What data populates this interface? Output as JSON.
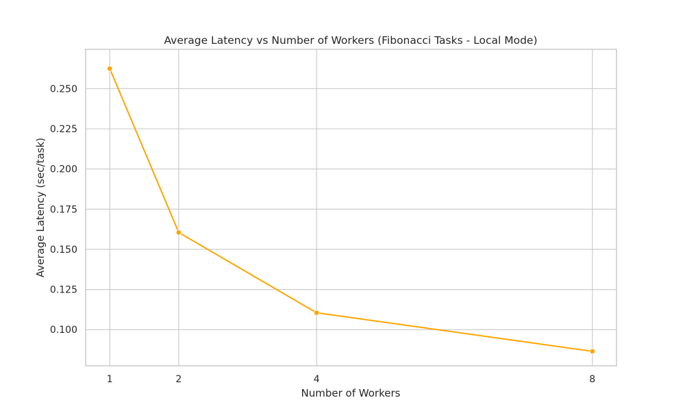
{
  "chart_data": {
    "type": "line",
    "title": "Average Latency vs Number of Workers (Fibonacci Tasks - Local Mode)",
    "xlabel": "Number of Workers",
    "ylabel": "Average Latency (sec/task)",
    "x": [
      1,
      2,
      4,
      8
    ],
    "xticks": [
      "1",
      "2",
      "4",
      "8"
    ],
    "yticks": [
      "0.100",
      "0.125",
      "0.150",
      "0.175",
      "0.200",
      "0.225",
      "0.250"
    ],
    "xlim": [
      0.65,
      8.35
    ],
    "ylim": [
      0.0775,
      0.2745
    ],
    "grid": true,
    "legend": "none",
    "series": [
      {
        "values": [
          0.2625,
          0.1605,
          0.1105,
          0.0865
        ],
        "color": "#FFA500",
        "marker": "circle"
      }
    ]
  }
}
